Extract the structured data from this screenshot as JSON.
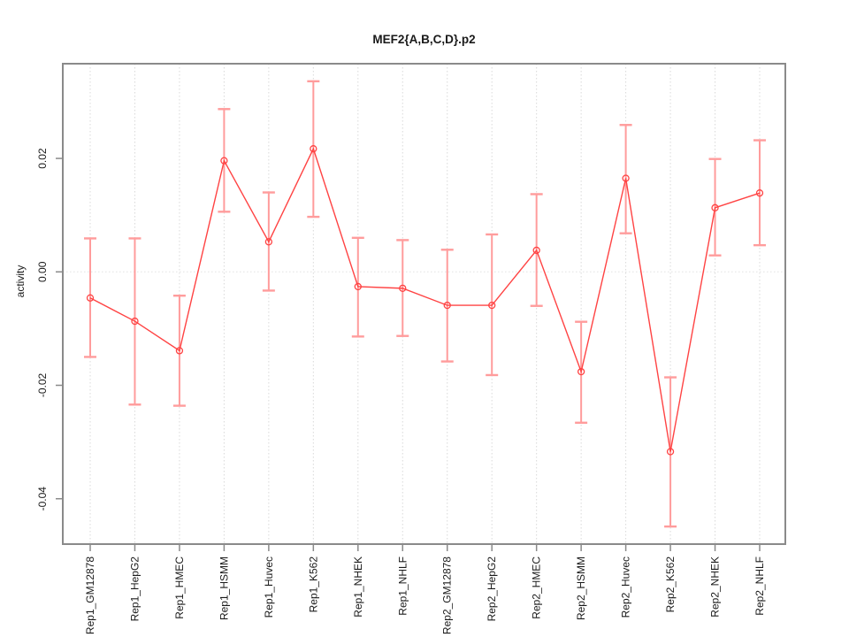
{
  "page": {
    "background": "#ffffff"
  },
  "chart_data": {
    "type": "line",
    "title": "MEF2{A,B,C,D}.p2",
    "xlabel": "",
    "ylabel": "activity",
    "point_marker": "open-circle",
    "error_bars": true,
    "legend": "none",
    "categories": [
      "Rep1_GM12878",
      "Rep1_HepG2",
      "Rep1_HMEC",
      "Rep1_HSMM",
      "Rep1_Huvec",
      "Rep1_K562",
      "Rep1_NHEK",
      "Rep1_NHLF",
      "Rep2_GM12878",
      "Rep2_HepG2",
      "Rep2_HMEC",
      "Rep2_HSMM",
      "Rep2_Huvec",
      "Rep2_K562",
      "Rep2_NHEK",
      "Rep2_NHLF"
    ],
    "series": [
      {
        "name": "activity",
        "values": [
          -0.0046,
          -0.0087,
          -0.0139,
          0.0196,
          0.0053,
          0.0217,
          -0.0026,
          -0.0029,
          -0.0059,
          -0.0059,
          0.0038,
          -0.0176,
          0.0165,
          -0.0317,
          0.0113,
          0.0139
        ],
        "upper": [
          0.0059,
          0.0059,
          -0.0042,
          0.0287,
          0.014,
          0.0336,
          0.006,
          0.0056,
          0.0039,
          0.0066,
          0.0137,
          -0.0088,
          0.0259,
          -0.0186,
          0.0199,
          0.0232
        ],
        "lower": [
          -0.015,
          -0.0234,
          -0.0236,
          0.0106,
          -0.0033,
          0.0097,
          -0.0114,
          -0.0113,
          -0.0158,
          -0.0182,
          -0.006,
          -0.0266,
          0.0068,
          -0.0449,
          0.0029,
          0.0047
        ]
      }
    ],
    "yticks": {
      "values": [
        0.02,
        0.0,
        -0.02,
        -0.04
      ],
      "labels": [
        "0.02",
        "0.00",
        "-0.02",
        "-0.04"
      ]
    },
    "ylim": [
      -0.048,
      0.0367
    ],
    "grid": {
      "vertical": "dotted",
      "horizontal_zero_line": "dotted"
    },
    "colors": {
      "series": "#ff4343",
      "error_bar": "#ff9c9c",
      "grid": "#d9d9d9",
      "zero_line": "#e2e2e2",
      "axis": "#8a8a8a",
      "text": "#1a1a1a"
    }
  }
}
